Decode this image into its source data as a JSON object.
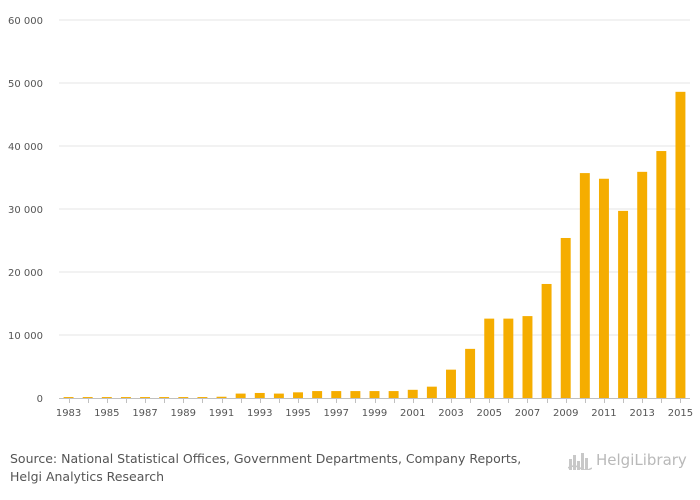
{
  "chart_data": {
    "type": "bar",
    "title": "",
    "xlabel": "",
    "ylabel": "",
    "ylim": [
      0,
      60000
    ],
    "yticks": [
      0,
      10000,
      20000,
      30000,
      40000,
      50000,
      60000
    ],
    "ytick_labels": [
      "0",
      "10 000",
      "20 000",
      "30 000",
      "40 000",
      "50 000",
      "60 000"
    ],
    "categories": [
      "1983",
      "1984",
      "1985",
      "1986",
      "1987",
      "1988",
      "1989",
      "1990",
      "1991",
      "1992",
      "1993",
      "1994",
      "1995",
      "1996",
      "1997",
      "1998",
      "1999",
      "2000",
      "2001",
      "2002",
      "2003",
      "2004",
      "2005",
      "2006",
      "2007",
      "2008",
      "2009",
      "2010",
      "2011",
      "2012",
      "2013",
      "2014",
      "2015"
    ],
    "xtick_labels": [
      "1983",
      "1985",
      "1987",
      "1989",
      "1991",
      "1993",
      "1995",
      "1997",
      "1999",
      "2001",
      "2003",
      "2005",
      "2007",
      "2009",
      "2011",
      "2013",
      "2015"
    ],
    "values": [
      150,
      150,
      150,
      150,
      150,
      150,
      150,
      150,
      200,
      700,
      800,
      700,
      900,
      1100,
      1100,
      1100,
      1100,
      1100,
      1300,
      1800,
      4500,
      7800,
      12600,
      12600,
      13000,
      18100,
      25400,
      35700,
      34800,
      29700,
      35900,
      39200,
      48600
    ],
    "bar_color": "#f5ad00",
    "grid": true
  },
  "source": {
    "text": "Source: National Statistical Offices, Government Departments, Company Reports, Helgi Analytics Research"
  },
  "logo": {
    "text": "HelgiLibrary",
    "icon": "city-skyline-icon"
  }
}
